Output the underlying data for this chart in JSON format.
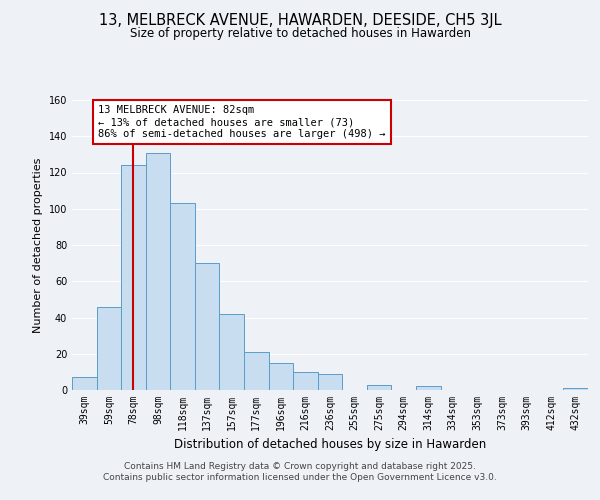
{
  "title": "13, MELBRECK AVENUE, HAWARDEN, DEESIDE, CH5 3JL",
  "subtitle": "Size of property relative to detached houses in Hawarden",
  "xlabel": "Distribution of detached houses by size in Hawarden",
  "ylabel": "Number of detached properties",
  "bar_labels": [
    "39sqm",
    "59sqm",
    "78sqm",
    "98sqm",
    "118sqm",
    "137sqm",
    "157sqm",
    "177sqm",
    "196sqm",
    "216sqm",
    "236sqm",
    "255sqm",
    "275sqm",
    "294sqm",
    "314sqm",
    "334sqm",
    "353sqm",
    "373sqm",
    "393sqm",
    "412sqm",
    "432sqm"
  ],
  "bar_values": [
    7,
    46,
    124,
    131,
    103,
    70,
    42,
    21,
    15,
    10,
    9,
    0,
    3,
    0,
    2,
    0,
    0,
    0,
    0,
    0,
    1
  ],
  "bar_color": "#c8ddf0",
  "bar_edge_color": "#5a9dc8",
  "vline_x_index": 2,
  "vline_color": "#cc0000",
  "ylim": [
    0,
    160
  ],
  "yticks": [
    0,
    20,
    40,
    60,
    80,
    100,
    120,
    140,
    160
  ],
  "annotation_title": "13 MELBRECK AVENUE: 82sqm",
  "annotation_line1": "← 13% of detached houses are smaller (73)",
  "annotation_line2": "86% of semi-detached houses are larger (498) →",
  "annotation_box_color": "#ffffff",
  "annotation_box_edge": "#cc0000",
  "footer_line1": "Contains HM Land Registry data © Crown copyright and database right 2025.",
  "footer_line2": "Contains public sector information licensed under the Open Government Licence v3.0.",
  "background_color": "#eef2f7",
  "grid_color": "#ffffff",
  "title_fontsize": 10.5,
  "subtitle_fontsize": 8.5,
  "ylabel_fontsize": 8,
  "xlabel_fontsize": 8.5,
  "tick_fontsize": 7,
  "annotation_fontsize": 7.5,
  "footer_fontsize": 6.5
}
